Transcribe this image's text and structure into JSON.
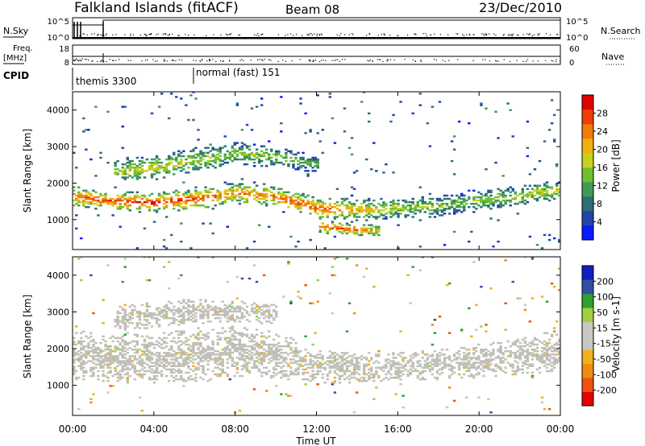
{
  "header": {
    "station": "Falkland Islands (fitACF)",
    "beam": "Beam 08",
    "date": "23/Dec/2010"
  },
  "strips": {
    "nsky_label": "N.Sky",
    "nsky_ticks": [
      "10^5",
      "10^0"
    ],
    "nsearch_label": "N.Search",
    "nsearch_ticks": [
      "10^5",
      "10^0"
    ],
    "freq_label_line1": "Freq.",
    "freq_label_line2": "[MHz]",
    "freq_ticks": [
      "18",
      "8"
    ],
    "nave_label": "Nave",
    "nave_ticks": [
      "60",
      "0"
    ],
    "cpid_label": "CPID",
    "cpid_modes": [
      "themis 3300",
      "normal (fast) 151"
    ]
  },
  "colors": {
    "power_scale": [
      "#0a1cff",
      "#2244aa",
      "#2e6e78",
      "#3f9a5a",
      "#6fbf30",
      "#c8d020",
      "#f0b010",
      "#f07a0a",
      "#f03c0a",
      "#e00000"
    ],
    "velocity_scale": [
      "#e80000",
      "#f05010",
      "#f08a10",
      "#f0b020",
      "#c8c8c0",
      "#c8c8c0",
      "#9fd040",
      "#30a030",
      "#3050a0",
      "#1020c0"
    ],
    "ground_scatter": "#c0c0b8"
  },
  "chart_data": [
    {
      "type": "heatmap",
      "panel": "power",
      "ylabel": "Slant Range [km]",
      "xlabel": "",
      "xticks": [
        "00:00",
        "04:00",
        "08:00",
        "12:00",
        "16:00",
        "20:00",
        "00:00"
      ],
      "xlim": [
        0,
        24
      ],
      "ylim": [
        180,
        4500
      ],
      "yticks": [
        1000,
        2000,
        3000,
        4000
      ],
      "colorbar_label": "Power [dB]",
      "colorbar_ticks": [
        "28",
        "24",
        "20",
        "16",
        "12",
        "8",
        "4"
      ],
      "colorbar_range": [
        0,
        30
      ],
      "bands": [
        {
          "times": [
            0,
            2,
            4,
            6,
            8,
            10,
            12,
            14,
            16,
            18,
            20,
            22,
            24
          ],
          "center_km": [
            1600,
            1500,
            1450,
            1550,
            1700,
            1600,
            1300,
            1250,
            1300,
            1350,
            1500,
            1650,
            1800
          ],
          "half_width_km": [
            250,
            220,
            230,
            250,
            250,
            240,
            250,
            260,
            240,
            250,
            250,
            240,
            220
          ],
          "peak_db": [
            24,
            26,
            28,
            26,
            22,
            24,
            26,
            20,
            16,
            14,
            14,
            16,
            18
          ]
        },
        {
          "times": [
            2,
            4,
            6,
            8,
            10,
            12
          ],
          "center_km": [
            2300,
            2400,
            2600,
            2800,
            2700,
            2500
          ],
          "half_width_km": [
            250,
            300,
            300,
            280,
            250,
            200
          ],
          "peak_db": [
            16,
            18,
            16,
            14,
            14,
            12
          ]
        },
        {
          "times": [
            12,
            13,
            14,
            15
          ],
          "center_km": [
            800,
            750,
            700,
            700
          ],
          "half_width_km": [
            150,
            150,
            150,
            150
          ],
          "peak_db": [
            24,
            26,
            24,
            18
          ]
        }
      ]
    },
    {
      "type": "heatmap",
      "panel": "velocity",
      "ylabel": "Slant Range [km]",
      "xlabel": "Time UT",
      "xticks": [
        "00:00",
        "04:00",
        "08:00",
        "12:00",
        "16:00",
        "20:00",
        "00:00"
      ],
      "xlim": [
        0,
        24
      ],
      "ylim": [
        180,
        4500
      ],
      "yticks": [
        1000,
        2000,
        3000,
        4000
      ],
      "colorbar_label": "Velocity [m s-1]",
      "colorbar_ticks": [
        "200",
        "100",
        "50",
        "15",
        "-15",
        "-50",
        "-100",
        "-200"
      ],
      "colorbar_range": [
        -250,
        250
      ],
      "bands": [
        {
          "times": [
            0,
            2,
            4,
            6,
            8,
            10,
            12,
            14,
            16,
            18,
            20,
            22,
            24
          ],
          "center_km": [
            1800,
            1700,
            1700,
            1800,
            1900,
            1800,
            1500,
            1450,
            1500,
            1550,
            1650,
            1800,
            1900
          ],
          "half_width_km": [
            600,
            550,
            600,
            650,
            600,
            550,
            400,
            350,
            350,
            350,
            400,
            450,
            500
          ],
          "velocity_ms": [
            0,
            0,
            0,
            0,
            0,
            0,
            0,
            0,
            0,
            0,
            0,
            0,
            0
          ]
        },
        {
          "times": [
            2,
            4,
            6,
            8,
            10
          ],
          "center_km": [
            2800,
            2900,
            3000,
            3000,
            2900
          ],
          "half_width_km": [
            300,
            300,
            300,
            250,
            250
          ],
          "velocity_ms": [
            0,
            0,
            0,
            0,
            0
          ]
        }
      ]
    }
  ]
}
